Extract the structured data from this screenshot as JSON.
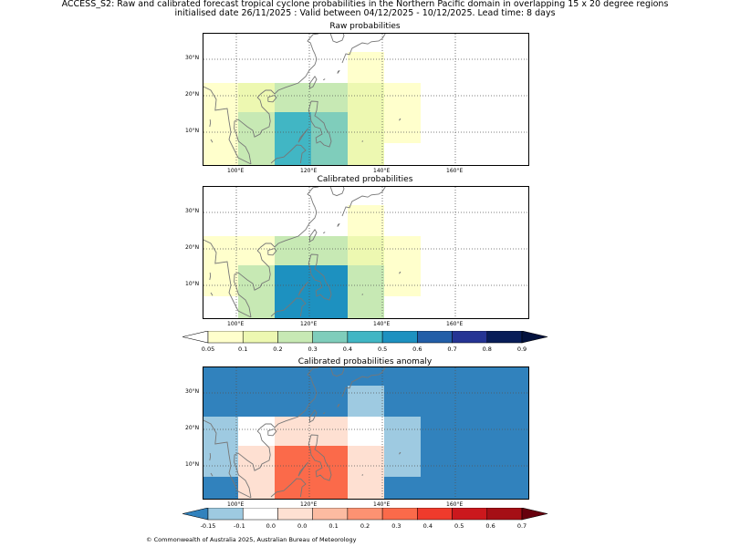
{
  "header": {
    "title_line1": "ACCESS_S2: Raw and calibrated forecast tropical cyclone probabilities in the Northern Pacific domain in overlapping 15 x 20 degree regions",
    "title_line2": "initialised date 26/11/2025 :  Valid between 04/12/2025 - 10/12/2025. Lead time: 8 days"
  },
  "axes": {
    "lon_labels": [
      "100°E",
      "120°E",
      "140°E",
      "160°E"
    ],
    "lat_labels": [
      "30°N",
      "20°N",
      "10°N"
    ]
  },
  "panels": [
    {
      "id": "raw",
      "title": "Raw probabilities"
    },
    {
      "id": "calibrated",
      "title": "Calibrated probabilities"
    },
    {
      "id": "anomaly",
      "title": "Calibrated probabilities anomaly"
    }
  ],
  "colorbars": {
    "probability": {
      "labels": [
        "0.05",
        "0.1",
        "0.2",
        "0.3",
        "0.4",
        "0.5",
        "0.6",
        "0.7",
        "0.8",
        "0.9"
      ],
      "colors": [
        "#ffffcc",
        "#edf8b1",
        "#c7e9b4",
        "#7fcdbb",
        "#41b6c4",
        "#1d91c0",
        "#225ea8",
        "#253494",
        "#081d58"
      ],
      "under_color": "#ffffff",
      "over_color": "#03123e"
    },
    "anomaly": {
      "labels": [
        "-0.15",
        "-0.1",
        "0.0",
        "0.0",
        "0.1",
        "0.2",
        "0.3",
        "0.4",
        "0.5",
        "0.6",
        "0.7"
      ],
      "colors": [
        "#9ecae1",
        "#ffffff",
        "#fee0d2",
        "#fcbba1",
        "#fc9272",
        "#fb6a4a",
        "#ef3b2c",
        "#cb181d",
        "#a50f15"
      ],
      "under_color": "#3182bd",
      "over_color": "#67000d"
    }
  },
  "footer": "© Commonwealth of Australia 2025, Australian Bureau of Meteorology"
}
